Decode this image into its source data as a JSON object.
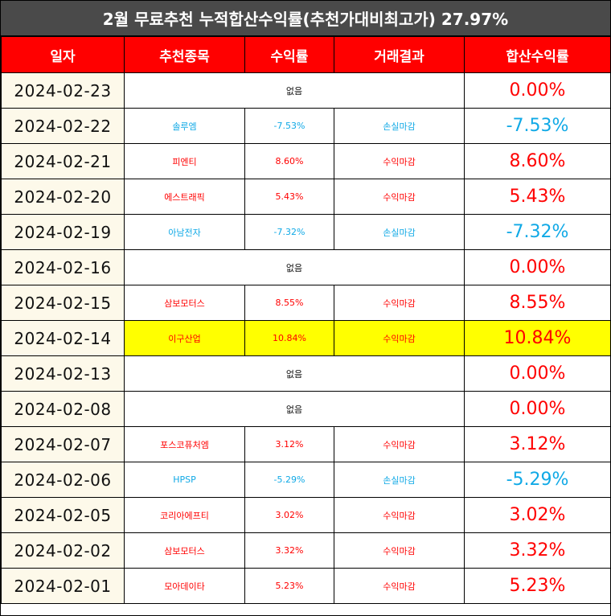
{
  "title": "2월 무료추천 누적합산수익률(추천가대비최고가) 27.97%",
  "colors": {
    "title_bg": "#4a4a4a",
    "header_bg": "#ff0000",
    "date_bg": "#fdf9ea",
    "positive": "#ff0000",
    "negative": "#10a9e6",
    "highlight": "#ffff00"
  },
  "headers": {
    "date": "일자",
    "stock": "추천종목",
    "rate": "수익률",
    "result": "거래결과",
    "cumulative": "합산수익률"
  },
  "rows": [
    {
      "date": "2024-02-23",
      "stock": "없음",
      "rate": "",
      "result": "",
      "cumulative": "0.00%",
      "type": "none"
    },
    {
      "date": "2024-02-22",
      "stock": "솔루엠",
      "rate": "-7.53%",
      "result": "손실마감",
      "cumulative": "-7.53%",
      "type": "neg"
    },
    {
      "date": "2024-02-21",
      "stock": "피엔티",
      "rate": "8.60%",
      "result": "수익마감",
      "cumulative": "8.60%",
      "type": "pos"
    },
    {
      "date": "2024-02-20",
      "stock": "에스트래픽",
      "rate": "5.43%",
      "result": "수익마감",
      "cumulative": "5.43%",
      "type": "pos"
    },
    {
      "date": "2024-02-19",
      "stock": "아남전자",
      "rate": "-7.32%",
      "result": "손실마감",
      "cumulative": "-7.32%",
      "type": "neg"
    },
    {
      "date": "2024-02-16",
      "stock": "없음",
      "rate": "",
      "result": "",
      "cumulative": "0.00%",
      "type": "none"
    },
    {
      "date": "2024-02-15",
      "stock": "삼보모터스",
      "rate": "8.55%",
      "result": "수익마감",
      "cumulative": "8.55%",
      "type": "pos"
    },
    {
      "date": "2024-02-14",
      "stock": "이구산업",
      "rate": "10.84%",
      "result": "수익마감",
      "cumulative": "10.84%",
      "type": "pos",
      "highlight": true
    },
    {
      "date": "2024-02-13",
      "stock": "없음",
      "rate": "",
      "result": "",
      "cumulative": "0.00%",
      "type": "none"
    },
    {
      "date": "2024-02-08",
      "stock": "없음",
      "rate": "",
      "result": "",
      "cumulative": "0.00%",
      "type": "none"
    },
    {
      "date": "2024-02-07",
      "stock": "포스코퓨처엠",
      "rate": "3.12%",
      "result": "수익마감",
      "cumulative": "3.12%",
      "type": "pos"
    },
    {
      "date": "2024-02-06",
      "stock": "HPSP",
      "rate": "-5.29%",
      "result": "손실마감",
      "cumulative": "-5.29%",
      "type": "neg"
    },
    {
      "date": "2024-02-05",
      "stock": "코리아에프티",
      "rate": "3.02%",
      "result": "수익마감",
      "cumulative": "3.02%",
      "type": "pos"
    },
    {
      "date": "2024-02-02",
      "stock": "삼보모터스",
      "rate": "3.32%",
      "result": "수익마감",
      "cumulative": "3.32%",
      "type": "pos"
    },
    {
      "date": "2024-02-01",
      "stock": "모아데이타",
      "rate": "5.23%",
      "result": "수익마감",
      "cumulative": "5.23%",
      "type": "pos"
    }
  ]
}
